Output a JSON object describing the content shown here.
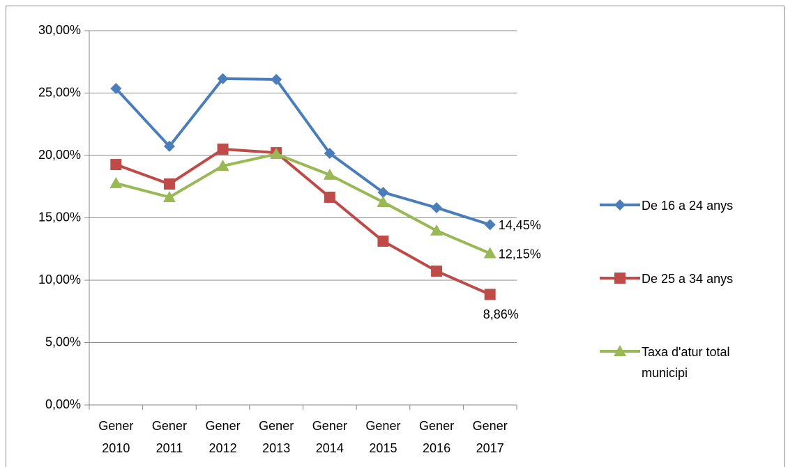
{
  "chart_data": {
    "type": "line",
    "categories": [
      "Gener 2010",
      "Gener 2011",
      "Gener 2012",
      "Gener 2013",
      "Gener 2014",
      "Gener 2015",
      "Gener 2016",
      "Gener 2017"
    ],
    "series": [
      {
        "name": "De 16 a 24 anys",
        "color": "#4a7ebb",
        "marker": "diamond",
        "values": [
          25.36,
          20.73,
          26.15,
          26.09,
          20.17,
          17.04,
          15.81,
          14.45
        ],
        "value_labels": [
          null,
          null,
          null,
          null,
          null,
          null,
          null,
          "14,45%"
        ]
      },
      {
        "name": "De 25 a 34 anys",
        "color": "#be4b48",
        "marker": "square",
        "values": [
          19.27,
          17.71,
          20.5,
          20.22,
          16.65,
          13.13,
          10.73,
          8.86
        ],
        "value_labels": [
          null,
          null,
          null,
          null,
          null,
          null,
          null,
          "8,86%"
        ]
      },
      {
        "name": "Taxa d'atur total municipi",
        "color": "#98b954",
        "marker": "triangle",
        "values": [
          17.77,
          16.65,
          19.16,
          20.11,
          18.44,
          16.26,
          13.97,
          12.15
        ],
        "value_labels": [
          null,
          null,
          null,
          null,
          null,
          null,
          null,
          "12,15%"
        ]
      }
    ],
    "ylim": [
      0,
      30
    ],
    "yticks": [
      {
        "value": 0,
        "label": "0,00%"
      },
      {
        "value": 5,
        "label": "5,00%"
      },
      {
        "value": 10,
        "label": "10,00%"
      },
      {
        "value": 15,
        "label": "15,00%"
      },
      {
        "value": 20,
        "label": "20,00%"
      },
      {
        "value": 25,
        "label": "25,00%"
      },
      {
        "value": 30,
        "label": "30,00%"
      }
    ],
    "grid": true,
    "legend": "right"
  }
}
